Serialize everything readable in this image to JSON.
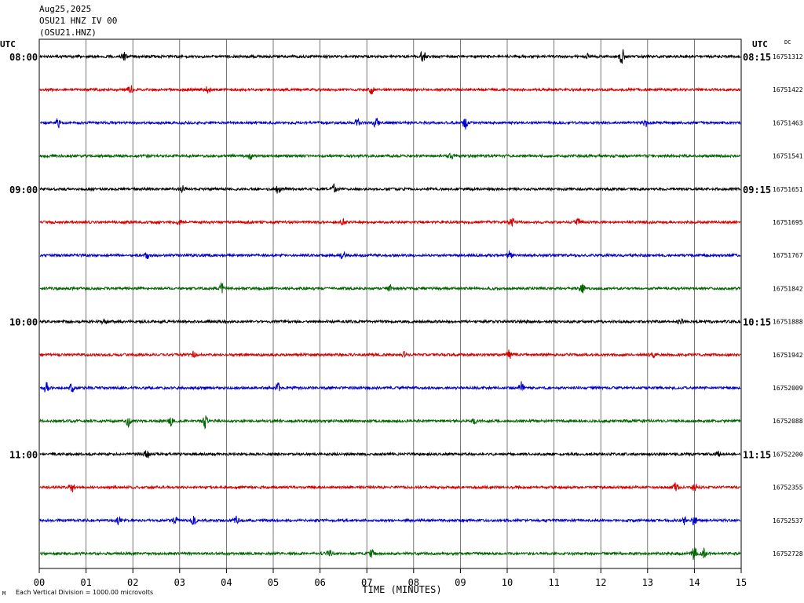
{
  "header": {
    "date": "Aug25,2025",
    "station": "OSU21 HNZ IV 00",
    "channel": "(OSU21.HNZ)"
  },
  "utc_left": "UTC",
  "utc_right": "UTC",
  "dc_label": "DC",
  "footer": {
    "mark": "M",
    "scale": "Each Vertical Division = 1000.00 microvolts"
  },
  "chart_data": {
    "type": "line",
    "xlabel": "TIME (MINUTES)",
    "x_ticks": [
      "00",
      "01",
      "02",
      "03",
      "04",
      "05",
      "06",
      "07",
      "08",
      "09",
      "10",
      "11",
      "12",
      "13",
      "14",
      "15"
    ],
    "xlim": [
      0,
      15
    ],
    "colors": [
      "#000000",
      "#d40000",
      "#0000cc",
      "#006400"
    ],
    "left_time_labels": [
      {
        "row": 0,
        "text": "08:00"
      },
      {
        "row": 4,
        "text": "09:00"
      },
      {
        "row": 8,
        "text": "10:00"
      },
      {
        "row": 12,
        "text": "11:00"
      }
    ],
    "right_time_labels": [
      {
        "row": 0,
        "text": "08:15"
      },
      {
        "row": 4,
        "text": "09:15"
      },
      {
        "row": 8,
        "text": "10:15"
      },
      {
        "row": 12,
        "text": "11:15"
      }
    ],
    "traces": [
      {
        "row": 0,
        "offset": "16751312",
        "events": [
          [
            1.8,
            6
          ],
          [
            8.2,
            8
          ],
          [
            12.45,
            10
          ],
          [
            11.7,
            3
          ]
        ]
      },
      {
        "row": 1,
        "offset": "16751422",
        "events": [
          [
            1.95,
            5
          ],
          [
            3.6,
            5
          ],
          [
            7.1,
            5
          ]
        ]
      },
      {
        "row": 2,
        "offset": "16751463",
        "events": [
          [
            0.4,
            8
          ],
          [
            6.8,
            4
          ],
          [
            7.2,
            6
          ],
          [
            9.1,
            8
          ],
          [
            12.95,
            5
          ]
        ]
      },
      {
        "row": 3,
        "offset": "16751541",
        "events": [
          [
            4.5,
            5
          ],
          [
            8.8,
            3
          ]
        ]
      },
      {
        "row": 4,
        "offset": "16751651",
        "events": [
          [
            3.05,
            5
          ],
          [
            5.1,
            5
          ],
          [
            6.3,
            5
          ]
        ]
      },
      {
        "row": 5,
        "offset": "16751695",
        "events": [
          [
            3.0,
            3
          ],
          [
            6.5,
            3
          ],
          [
            10.1,
            5
          ],
          [
            11.5,
            6
          ]
        ]
      },
      {
        "row": 6,
        "offset": "16751767",
        "events": [
          [
            2.3,
            4
          ],
          [
            6.5,
            6
          ],
          [
            10.05,
            5
          ]
        ]
      },
      {
        "row": 7,
        "offset": "16751842",
        "events": [
          [
            3.9,
            6
          ],
          [
            7.5,
            4
          ],
          [
            11.6,
            6
          ]
        ]
      },
      {
        "row": 8,
        "offset": "16751888",
        "events": [
          [
            1.4,
            5
          ],
          [
            13.7,
            4
          ]
        ]
      },
      {
        "row": 9,
        "offset": "16751942",
        "events": [
          [
            3.3,
            4
          ],
          [
            7.8,
            3
          ],
          [
            10.05,
            6
          ],
          [
            13.1,
            4
          ]
        ]
      },
      {
        "row": 10,
        "offset": "16752009",
        "events": [
          [
            0.15,
            6
          ],
          [
            0.7,
            5
          ],
          [
            5.1,
            5
          ],
          [
            10.3,
            7
          ]
        ]
      },
      {
        "row": 11,
        "offset": "16752088",
        "events": [
          [
            1.9,
            6
          ],
          [
            2.8,
            6
          ],
          [
            3.55,
            8
          ],
          [
            9.3,
            4
          ]
        ]
      },
      {
        "row": 12,
        "offset": "16752200",
        "events": [
          [
            2.3,
            5
          ],
          [
            14.5,
            4
          ]
        ]
      },
      {
        "row": 13,
        "offset": "16752355",
        "events": [
          [
            0.7,
            6
          ],
          [
            13.6,
            5
          ],
          [
            14.0,
            5
          ]
        ]
      },
      {
        "row": 14,
        "offset": "16752537",
        "events": [
          [
            1.7,
            4
          ],
          [
            2.9,
            5
          ],
          [
            3.3,
            5
          ],
          [
            4.2,
            5
          ],
          [
            13.8,
            6
          ],
          [
            14.0,
            7
          ]
        ]
      },
      {
        "row": 15,
        "offset": "16752728",
        "events": [
          [
            6.2,
            4
          ],
          [
            7.1,
            4
          ],
          [
            14.0,
            9
          ],
          [
            14.2,
            8
          ]
        ]
      }
    ]
  }
}
